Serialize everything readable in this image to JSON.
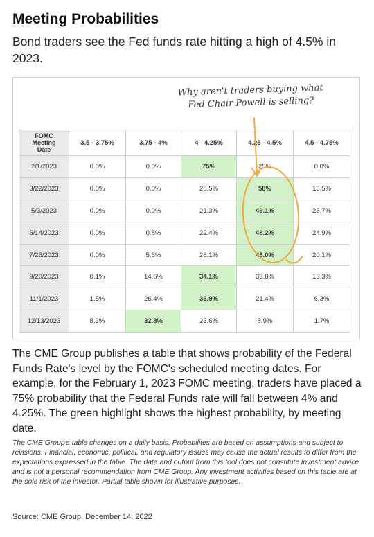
{
  "title": "Meeting Probabilities",
  "subtitle": "Bond traders see the Fed funds rate hitting a high of 4.5% in 2023.",
  "annotation": {
    "line1": "Why aren't traders buying what",
    "line2": "Fed Chair Powell is selling?",
    "ink_color": "#f2a93b"
  },
  "table": {
    "corner": [
      "FOMC",
      "Meeting",
      "Date"
    ],
    "columns": [
      "3.5 - 3.75%",
      "3.75 - 4%",
      "4 - 4.25%",
      "4.25 - 4.5%",
      "4.5 - 4.75%"
    ],
    "highlight_color": "#d3f1c9",
    "rows": [
      {
        "date": "2/1/2023",
        "values": [
          "0.0%",
          "0.0%",
          "75%",
          "25%",
          "0.0%"
        ],
        "highlight": 2
      },
      {
        "date": "3/22/2023",
        "values": [
          "0.0%",
          "0.0%",
          "28.5%",
          "58%",
          "15.5%"
        ],
        "highlight": 3
      },
      {
        "date": "5/3/2023",
        "values": [
          "0.0%",
          "0.0%",
          "21.3%",
          "49.1%",
          "25.7%"
        ],
        "highlight": 3
      },
      {
        "date": "6/14/2023",
        "values": [
          "0.0%",
          "0.8%",
          "22.4%",
          "48.2%",
          "24.9%"
        ],
        "highlight": 3
      },
      {
        "date": "7/26/2023",
        "values": [
          "0.0%",
          "5.6%",
          "28.1%",
          "43.0%",
          "20.1%"
        ],
        "highlight": 3
      },
      {
        "date": "9/20/2023",
        "values": [
          "0.1%",
          "14.6%",
          "34.1%",
          "33.8%",
          "13.3%"
        ],
        "highlight": 2
      },
      {
        "date": "11/1/2023",
        "values": [
          "1.5%",
          "26.4%",
          "33.9%",
          "21.4%",
          "6.3%"
        ],
        "highlight": 2
      },
      {
        "date": "12/13/2023",
        "values": [
          "8.3%",
          "32.8%",
          "23.6%",
          "8.9%",
          "1.7%"
        ],
        "highlight": 1
      }
    ]
  },
  "description": "The CME Group publishes a table that shows probability of the Federal Funds Rate's level by the FOMC's scheduled meeting dates. For example, for the February 1, 2023 FOMC meeting, traders have placed a 75% probability that the Federal Funds rate will fall between 4% and 4.25%. The green highlight shows the highest probability, by meeting date.",
  "disclaimer": "The CME Group's table changes on a daily basis. Probabilites are based on assumptions and subject to revisions. Financial, economic, political, and regulatory issues may cause the actual results to differ from the expectations expressed in the table. The data and output from this tool does not constitute investment advice and is not a personal recommendation from CME Group.  Any investment activities based on this table are at the sole risk of the investor. Partial table shown for illustrative purposes.",
  "source": "Source: CME Group, December 14, 2022"
}
